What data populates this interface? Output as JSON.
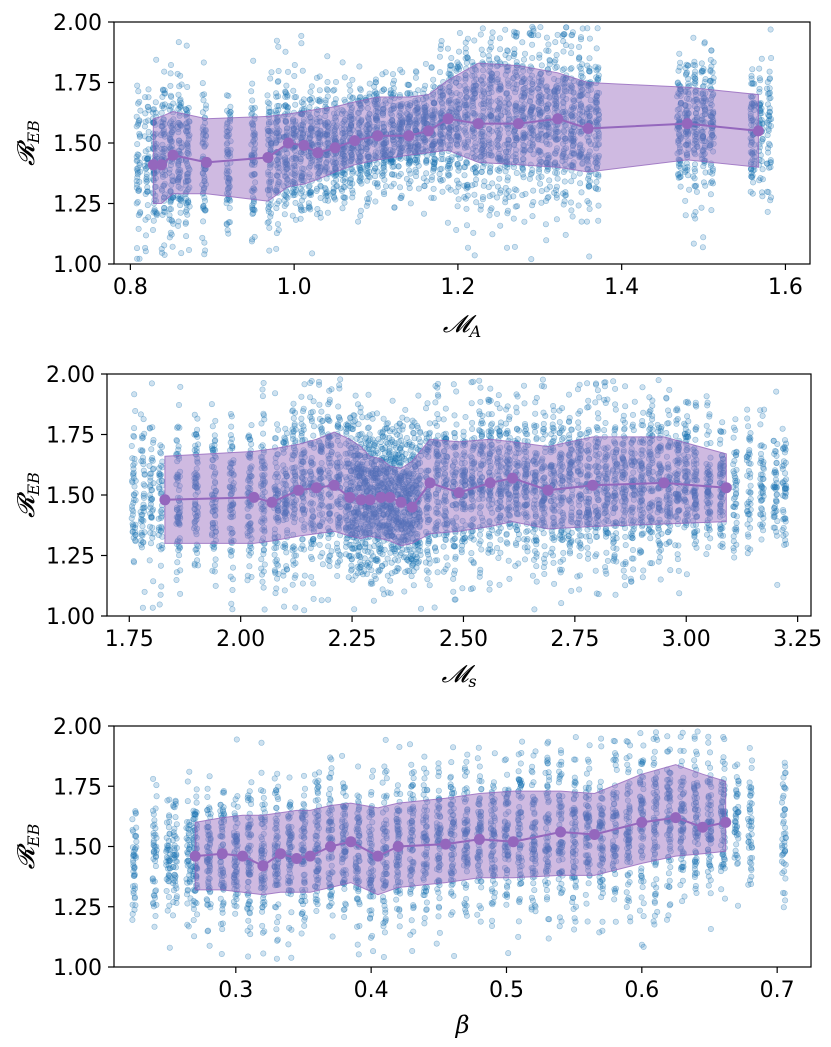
{
  "chart_data": [
    {
      "type": "scatter",
      "title": "",
      "xlabel": "𝓜",
      "xlabel_sub": "A",
      "ylabel": "𝓡",
      "ylabel_sub": "EB",
      "xlim": [
        0.78,
        1.63
      ],
      "ylim": [
        1.0,
        2.0
      ],
      "xticks": [
        0.8,
        1.0,
        1.2,
        1.4,
        1.6
      ],
      "xtick_labels": [
        "0.8",
        "1.0",
        "1.2",
        "1.4",
        "1.6"
      ],
      "yticks": [
        1.0,
        1.25,
        1.5,
        1.75,
        2.0
      ],
      "ytick_labels": [
        "1.00",
        "1.25",
        "1.50",
        "1.75",
        "2.00"
      ],
      "scatter_color": "#1f77b4",
      "band_color": "#9467bd",
      "scatter_columns": [
        0.81,
        0.82,
        0.83,
        0.84,
        0.85,
        0.86,
        0.87,
        0.89,
        0.92,
        0.95,
        0.97,
        0.98,
        0.99,
        1.0,
        1.01,
        1.02,
        1.03,
        1.04,
        1.05,
        1.06,
        1.07,
        1.08,
        1.09,
        1.1,
        1.11,
        1.12,
        1.13,
        1.14,
        1.15,
        1.16,
        1.17,
        1.18,
        1.19,
        1.2,
        1.21,
        1.22,
        1.23,
        1.24,
        1.25,
        1.26,
        1.27,
        1.28,
        1.29,
        1.3,
        1.31,
        1.32,
        1.33,
        1.34,
        1.35,
        1.36,
        1.37,
        1.47,
        1.48,
        1.49,
        1.5,
        1.51,
        1.56,
        1.57,
        1.58
      ],
      "binned_mean": {
        "x": [
          0.828,
          0.838,
          0.852,
          0.893,
          0.968,
          0.993,
          1.012,
          1.029,
          1.05,
          1.074,
          1.102,
          1.14,
          1.164,
          1.188,
          1.225,
          1.274,
          1.322,
          1.359,
          1.48,
          1.567
        ],
        "y": [
          1.41,
          1.41,
          1.45,
          1.42,
          1.44,
          1.5,
          1.49,
          1.46,
          1.48,
          1.51,
          1.53,
          1.53,
          1.55,
          1.6,
          1.58,
          1.58,
          1.6,
          1.56,
          1.58,
          1.55
        ],
        "upper": [
          1.6,
          1.61,
          1.63,
          1.6,
          1.61,
          1.62,
          1.63,
          1.64,
          1.65,
          1.67,
          1.69,
          1.69,
          1.7,
          1.76,
          1.83,
          1.82,
          1.79,
          1.75,
          1.73,
          1.7
        ],
        "lower": [
          1.25,
          1.25,
          1.29,
          1.29,
          1.26,
          1.32,
          1.33,
          1.35,
          1.38,
          1.41,
          1.43,
          1.45,
          1.46,
          1.47,
          1.42,
          1.41,
          1.4,
          1.38,
          1.43,
          1.4
        ]
      }
    },
    {
      "type": "scatter",
      "title": "",
      "xlabel": "𝓜",
      "xlabel_sub": "s",
      "ylabel": "𝓡",
      "ylabel_sub": "EB",
      "xlim": [
        1.7,
        3.28
      ],
      "ylim": [
        1.0,
        2.0
      ],
      "xticks": [
        1.75,
        2.0,
        2.25,
        2.5,
        2.75,
        3.0,
        3.25
      ],
      "xtick_labels": [
        "1.75",
        "2.00",
        "2.25",
        "2.50",
        "2.75",
        "3.00",
        "3.25"
      ],
      "yticks": [
        1.0,
        1.25,
        1.5,
        1.75,
        2.0
      ],
      "ytick_labels": [
        "1.00",
        "1.25",
        "1.50",
        "1.75",
        "2.00"
      ],
      "scatter_color": "#1f77b4",
      "band_color": "#9467bd",
      "scatter_columns": [
        1.76,
        1.78,
        1.8,
        1.82,
        1.86,
        1.9,
        1.94,
        1.98,
        2.02,
        2.05,
        2.08,
        2.1,
        2.12,
        2.14,
        2.16,
        2.18,
        2.2,
        2.22,
        2.24,
        2.25,
        2.26,
        2.27,
        2.28,
        2.29,
        2.3,
        2.31,
        2.32,
        2.33,
        2.34,
        2.35,
        2.36,
        2.37,
        2.38,
        2.39,
        2.4,
        2.42,
        2.44,
        2.46,
        2.48,
        2.5,
        2.52,
        2.54,
        2.56,
        2.58,
        2.6,
        2.62,
        2.64,
        2.66,
        2.68,
        2.7,
        2.72,
        2.74,
        2.76,
        2.78,
        2.8,
        2.82,
        2.84,
        2.86,
        2.88,
        2.9,
        2.92,
        2.94,
        2.96,
        2.98,
        3.0,
        3.02,
        3.05,
        3.08,
        3.11,
        3.14,
        3.17,
        3.2,
        3.22
      ],
      "binned_mean": {
        "x": [
          1.83,
          2.03,
          2.07,
          2.13,
          2.17,
          2.21,
          2.245,
          2.27,
          2.29,
          2.315,
          2.335,
          2.36,
          2.385,
          2.425,
          2.49,
          2.56,
          2.61,
          2.69,
          2.79,
          2.95,
          3.09
        ],
        "y": [
          1.48,
          1.49,
          1.47,
          1.52,
          1.53,
          1.54,
          1.49,
          1.48,
          1.48,
          1.49,
          1.49,
          1.47,
          1.45,
          1.55,
          1.51,
          1.55,
          1.57,
          1.52,
          1.54,
          1.55,
          1.53
        ],
        "upper": [
          1.66,
          1.68,
          1.69,
          1.71,
          1.73,
          1.76,
          1.73,
          1.7,
          1.66,
          1.65,
          1.62,
          1.61,
          1.64,
          1.73,
          1.72,
          1.73,
          1.72,
          1.7,
          1.74,
          1.74,
          1.67
        ],
        "lower": [
          1.3,
          1.3,
          1.31,
          1.33,
          1.34,
          1.35,
          1.33,
          1.32,
          1.33,
          1.32,
          1.31,
          1.29,
          1.3,
          1.34,
          1.35,
          1.37,
          1.39,
          1.36,
          1.37,
          1.38,
          1.39
        ]
      }
    },
    {
      "type": "scatter",
      "title": "",
      "xlabel": "β",
      "xlabel_sub": "",
      "ylabel": "𝓡",
      "ylabel_sub": "EB",
      "xlim": [
        0.21,
        0.725
      ],
      "ylim": [
        1.0,
        2.0
      ],
      "xticks": [
        0.3,
        0.4,
        0.5,
        0.6,
        0.7
      ],
      "xtick_labels": [
        "0.3",
        "0.4",
        "0.5",
        "0.6",
        "0.7"
      ],
      "yticks": [
        1.0,
        1.25,
        1.5,
        1.75,
        2.0
      ],
      "ytick_labels": [
        "1.00",
        "1.25",
        "1.50",
        "1.75",
        "2.00"
      ],
      "scatter_color": "#1f77b4",
      "band_color": "#9467bd",
      "scatter_columns": [
        0.225,
        0.24,
        0.25,
        0.255,
        0.265,
        0.27,
        0.28,
        0.29,
        0.3,
        0.31,
        0.32,
        0.33,
        0.34,
        0.35,
        0.36,
        0.37,
        0.38,
        0.39,
        0.4,
        0.41,
        0.42,
        0.43,
        0.44,
        0.45,
        0.46,
        0.47,
        0.48,
        0.49,
        0.5,
        0.51,
        0.52,
        0.53,
        0.54,
        0.55,
        0.56,
        0.57,
        0.58,
        0.59,
        0.6,
        0.61,
        0.62,
        0.63,
        0.64,
        0.65,
        0.66,
        0.67,
        0.68,
        0.705
      ],
      "binned_mean": {
        "x": [
          0.27,
          0.29,
          0.305,
          0.32,
          0.333,
          0.345,
          0.355,
          0.37,
          0.385,
          0.405,
          0.42,
          0.455,
          0.48,
          0.505,
          0.54,
          0.565,
          0.6,
          0.625,
          0.645,
          0.662
        ],
        "y": [
          1.46,
          1.47,
          1.46,
          1.42,
          1.47,
          1.45,
          1.46,
          1.5,
          1.52,
          1.46,
          1.5,
          1.51,
          1.53,
          1.52,
          1.56,
          1.55,
          1.6,
          1.62,
          1.58,
          1.6
        ],
        "upper": [
          1.6,
          1.62,
          1.63,
          1.63,
          1.64,
          1.65,
          1.65,
          1.67,
          1.68,
          1.66,
          1.68,
          1.7,
          1.72,
          1.73,
          1.73,
          1.72,
          1.8,
          1.84,
          1.8,
          1.77
        ],
        "lower": [
          1.32,
          1.32,
          1.31,
          1.3,
          1.31,
          1.31,
          1.31,
          1.33,
          1.35,
          1.3,
          1.33,
          1.35,
          1.37,
          1.37,
          1.38,
          1.38,
          1.43,
          1.46,
          1.47,
          1.48
        ]
      }
    }
  ]
}
